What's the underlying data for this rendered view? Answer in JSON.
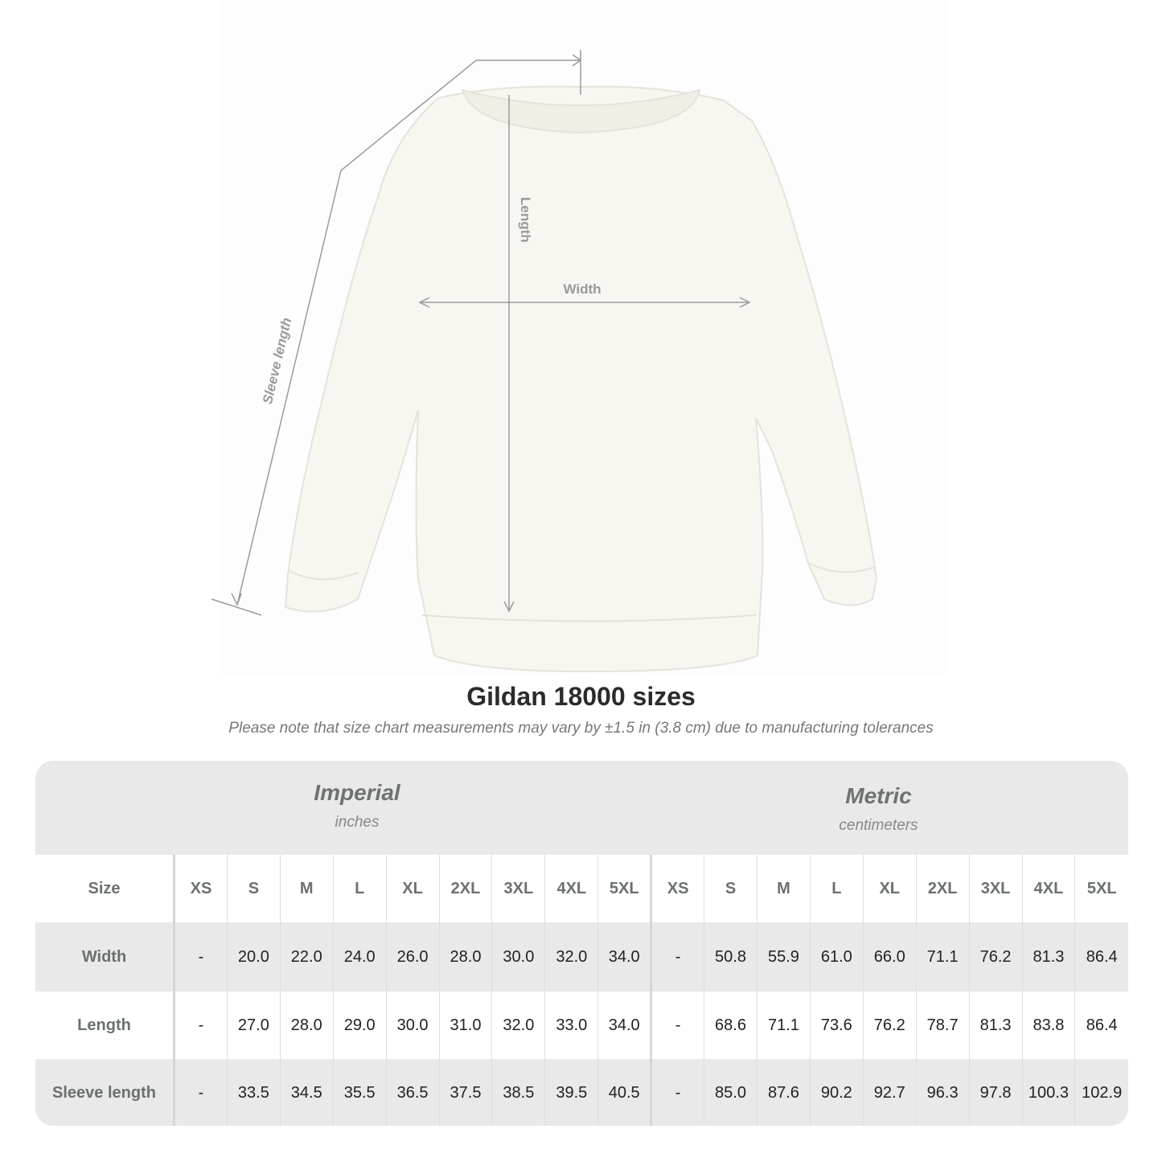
{
  "illustration": {
    "labels": {
      "length": "Length",
      "width": "Width",
      "sleeve": "Sleeve length"
    },
    "garment_color": "#f8f6f1",
    "line_color": "#9a9a9a"
  },
  "title": "Gildan 18000 sizes",
  "subtitle": "Please note that size chart measurements may vary by ±1.5 in (3.8 cm) due to manufacturing tolerances",
  "imperial": {
    "name": "Imperial",
    "unit": "inches"
  },
  "metric": {
    "name": "Metric",
    "unit": "centimeters"
  },
  "table": {
    "header_label": "Size",
    "sizes": [
      "XS",
      "S",
      "M",
      "L",
      "XL",
      "2XL",
      "3XL",
      "4XL",
      "5XL"
    ],
    "rows": [
      {
        "label": "Width",
        "imperial": [
          "-",
          "20.0",
          "22.0",
          "24.0",
          "26.0",
          "28.0",
          "30.0",
          "32.0",
          "34.0"
        ],
        "metric": [
          "-",
          "50.8",
          "55.9",
          "61.0",
          "66.0",
          "71.1",
          "76.2",
          "81.3",
          "86.4"
        ]
      },
      {
        "label": "Length",
        "imperial": [
          "-",
          "27.0",
          "28.0",
          "29.0",
          "30.0",
          "31.0",
          "32.0",
          "33.0",
          "34.0"
        ],
        "metric": [
          "-",
          "68.6",
          "71.1",
          "73.6",
          "76.2",
          "78.7",
          "81.3",
          "83.8",
          "86.4"
        ]
      },
      {
        "label": "Sleeve length",
        "imperial": [
          "-",
          "33.5",
          "34.5",
          "35.5",
          "36.5",
          "37.5",
          "38.5",
          "39.5",
          "40.5"
        ],
        "metric": [
          "-",
          "85.0",
          "87.6",
          "90.2",
          "92.7",
          "96.3",
          "97.8",
          "100.3",
          "102.9"
        ]
      }
    ]
  }
}
